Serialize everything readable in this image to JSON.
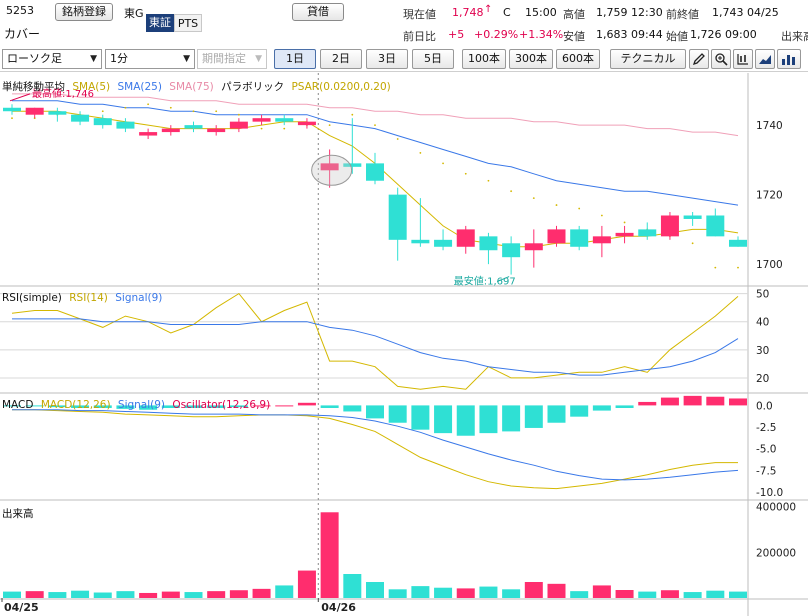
{
  "header": {
    "code": "5253",
    "company": "カバー",
    "register_button": "銘柄登録",
    "market": "東G",
    "exchange_tabs": [
      "東証",
      "PTS"
    ],
    "lend_button": "貸借",
    "current_label": "現在値",
    "current_value": "1,748",
    "current_arrow": "↑",
    "current_flag": "C",
    "current_time": "15:00",
    "high_label": "高値",
    "high_value": "1,759 12:30",
    "prev_close_label": "前終値",
    "prev_close_value": "1,743 04/25",
    "change_label": "前日比",
    "change_value": "+5",
    "change_pct": "+0.29%",
    "change_pct2": "+1.34%",
    "low_label": "安値",
    "low_value": "1,683 09:44",
    "open_label": "始値",
    "open_value": "1,726 09:00",
    "volume_label_partial": "出来高"
  },
  "toolbar": {
    "chart_type": "ローソク足",
    "interval": "1分",
    "period_placeholder": "期間指定",
    "ranges": [
      "1日",
      "2日",
      "3日",
      "5日",
      "100本",
      "300本",
      "600本"
    ],
    "active_range": "1日",
    "technical_button": "テクニカル",
    "icons": [
      "pen-icon",
      "zoom-icon",
      "compare-icon",
      "chart-style-icon",
      "bar-chart-icon"
    ]
  },
  "colors": {
    "up": "#ff2d6e",
    "down": "#2fe0d4",
    "sma5": "#d4b800",
    "sma25": "#3a78e8",
    "sma75": "#f0a0b8",
    "psar": "#d4b800",
    "rsi": "#d4b800",
    "signal": "#3a78e8",
    "macd": "#d4b800"
  },
  "main_legend": {
    "title": "単純移動平均",
    "sma5": "SMA(5)",
    "sma25": "SMA(25)",
    "sma75": "SMA(75)",
    "parabolic": "パラボリック",
    "psar": "PSAR(0.0200,0.20)"
  },
  "rsi_legend": {
    "title": "RSI(simple)",
    "rsi": "RSI(14)",
    "signal": "Signal(9)"
  },
  "macd_legend": {
    "title": "MACD",
    "macd": "MACD(12,26)",
    "signal": "Signal(9)",
    "osc": "Oscillator(12,26,9)"
  },
  "volume_legend": {
    "title": "出来高"
  },
  "chart_data": [
    {
      "type": "candlestick",
      "title": "",
      "y_ticks": [
        1700,
        1720,
        1740
      ],
      "ylim": [
        1694,
        1755
      ],
      "annotations": {
        "high": "最高値:1,746",
        "low": "最安値:1,697"
      },
      "candles": [
        {
          "o": 1745,
          "h": 1746,
          "l": 1743,
          "c": 1744
        },
        {
          "o": 1743,
          "h": 1745,
          "l": 1742,
          "c": 1745
        },
        {
          "o": 1744,
          "h": 1745,
          "l": 1741,
          "c": 1743
        },
        {
          "o": 1743,
          "h": 1744,
          "l": 1740,
          "c": 1741
        },
        {
          "o": 1742,
          "h": 1743,
          "l": 1739,
          "c": 1740
        },
        {
          "o": 1741,
          "h": 1742,
          "l": 1738,
          "c": 1739
        },
        {
          "o": 1737,
          "h": 1739,
          "l": 1736,
          "c": 1738
        },
        {
          "o": 1738,
          "h": 1740,
          "l": 1737,
          "c": 1739
        },
        {
          "o": 1740,
          "h": 1741,
          "l": 1738,
          "c": 1739
        },
        {
          "o": 1738,
          "h": 1740,
          "l": 1737,
          "c": 1739
        },
        {
          "o": 1739,
          "h": 1742,
          "l": 1738,
          "c": 1741
        },
        {
          "o": 1741,
          "h": 1743,
          "l": 1740,
          "c": 1742
        },
        {
          "o": 1742,
          "h": 1743,
          "l": 1740,
          "c": 1741
        },
        {
          "o": 1740,
          "h": 1742,
          "l": 1739,
          "c": 1741
        },
        {
          "o": 1727,
          "h": 1733,
          "l": 1722,
          "c": 1729
        },
        {
          "o": 1729,
          "h": 1742,
          "l": 1726,
          "c": 1728
        },
        {
          "o": 1729,
          "h": 1732,
          "l": 1723,
          "c": 1724
        },
        {
          "o": 1720,
          "h": 1722,
          "l": 1701,
          "c": 1707
        },
        {
          "o": 1707,
          "h": 1719,
          "l": 1705,
          "c": 1706
        },
        {
          "o": 1707,
          "h": 1710,
          "l": 1704,
          "c": 1705
        },
        {
          "o": 1705,
          "h": 1711,
          "l": 1703,
          "c": 1710
        },
        {
          "o": 1708,
          "h": 1709,
          "l": 1700,
          "c": 1704
        },
        {
          "o": 1706,
          "h": 1708,
          "l": 1697,
          "c": 1702
        },
        {
          "o": 1704,
          "h": 1710,
          "l": 1699,
          "c": 1706
        },
        {
          "o": 1706,
          "h": 1711,
          "l": 1705,
          "c": 1710
        },
        {
          "o": 1710,
          "h": 1711,
          "l": 1704,
          "c": 1705
        },
        {
          "o": 1706,
          "h": 1711,
          "l": 1702,
          "c": 1708
        },
        {
          "o": 1708,
          "h": 1711,
          "l": 1706,
          "c": 1709
        },
        {
          "o": 1710,
          "h": 1712,
          "l": 1707,
          "c": 1708
        },
        {
          "o": 1708,
          "h": 1715,
          "l": 1707,
          "c": 1714
        },
        {
          "o": 1714,
          "h": 1715,
          "l": 1711,
          "c": 1713
        },
        {
          "o": 1714,
          "h": 1716,
          "l": 1708,
          "c": 1708
        },
        {
          "o": 1707,
          "h": 1708,
          "l": 1705,
          "c": 1705
        }
      ],
      "series": [
        {
          "name": "SMA(5)",
          "values": [
            1744,
            1744,
            1744,
            1743,
            1742,
            1741,
            1740,
            1739,
            1739,
            1739,
            1739,
            1740,
            1741,
            1741,
            1737,
            1734,
            1729,
            1723,
            1717,
            1711,
            1707,
            1706,
            1705,
            1705,
            1706,
            1706,
            1707,
            1708,
            1708,
            1709,
            1710,
            1710,
            1709
          ]
        },
        {
          "name": "SMA(25)",
          "values": [
            1747,
            1747,
            1747,
            1746,
            1746,
            1745,
            1745,
            1744,
            1744,
            1743,
            1743,
            1743,
            1743,
            1743,
            1741,
            1740,
            1739,
            1737,
            1735,
            1733,
            1731,
            1729,
            1728,
            1726,
            1724,
            1723,
            1722,
            1721,
            1721,
            1720,
            1719,
            1718,
            1717
          ]
        },
        {
          "name": "SMA(75)",
          "values": [
            1749,
            1749,
            1749,
            1748,
            1748,
            1748,
            1748,
            1747,
            1747,
            1747,
            1746,
            1746,
            1746,
            1746,
            1745,
            1745,
            1744,
            1744,
            1743,
            1743,
            1742,
            1742,
            1742,
            1741,
            1741,
            1740,
            1740,
            1740,
            1739,
            1739,
            1738,
            1738,
            1737
          ]
        },
        {
          "name": "PSAR(0.0200,0.20)",
          "values": [
            1742,
            1742,
            1743,
            1743,
            1744,
            1745,
            1746,
            1745,
            1744,
            1744,
            1743,
            1739,
            1739,
            1740,
            1740,
            1743,
            1740,
            1736,
            1732,
            1729,
            1726,
            1724,
            1721,
            1719,
            1717,
            1716,
            1714,
            1712,
            1710,
            1708,
            1706,
            1699,
            1699
          ]
        }
      ]
    },
    {
      "type": "line",
      "title": "",
      "y_ticks": [
        20,
        30,
        40,
        50
      ],
      "ylim": [
        15,
        52
      ],
      "series": [
        {
          "name": "RSI(14)",
          "values": [
            43,
            44,
            44,
            41,
            38,
            42,
            40,
            36,
            39,
            45,
            50,
            40,
            44,
            47,
            26,
            26,
            24,
            17,
            16,
            17,
            16,
            24,
            20,
            20,
            21,
            22,
            22,
            24,
            22,
            30,
            36,
            42,
            49
          ]
        },
        {
          "name": "Signal(9)",
          "values": [
            41,
            41,
            41,
            41,
            40,
            40,
            40,
            39,
            39,
            39,
            39,
            40,
            40,
            40,
            38,
            37,
            35,
            32,
            29,
            27,
            26,
            24,
            23,
            22,
            22,
            21,
            21,
            22,
            23,
            24,
            26,
            29,
            34
          ]
        }
      ]
    },
    {
      "type": "bar+line",
      "title": "",
      "y_ticks": [
        0.0,
        -2.5,
        -5.0,
        -7.5,
        -10.0
      ],
      "ylim": [
        -10.8,
        1.2
      ],
      "series": [
        {
          "name": "MACD(12,26)",
          "values": [
            -0.5,
            -0.5,
            -0.6,
            -0.7,
            -0.8,
            -1.0,
            -1.1,
            -1.2,
            -1.3,
            -1.3,
            -1.2,
            -1.1,
            -1.1,
            -1.2,
            -1.5,
            -2.2,
            -3.0,
            -4.5,
            -6.0,
            -7.0,
            -8.0,
            -8.8,
            -9.3,
            -9.5,
            -9.6,
            -9.3,
            -9.0,
            -8.5,
            -8.0,
            -7.4,
            -6.9,
            -6.6,
            -6.6
          ]
        },
        {
          "name": "Signal(9)",
          "values": [
            -0.5,
            -0.5,
            -0.5,
            -0.6,
            -0.6,
            -0.7,
            -0.8,
            -0.9,
            -1.0,
            -1.0,
            -1.0,
            -1.1,
            -1.1,
            -1.1,
            -1.2,
            -1.4,
            -1.8,
            -2.4,
            -3.1,
            -4.0,
            -4.8,
            -5.6,
            -6.3,
            -6.9,
            -7.6,
            -8.1,
            -8.5,
            -8.6,
            -8.5,
            -8.3,
            -8.0,
            -7.7,
            -7.5
          ]
        },
        {
          "name": "Oscillator(12,26,9)",
          "values": [
            -0.1,
            -0.1,
            -0.2,
            -0.3,
            -0.3,
            -0.4,
            -0.5,
            -0.3,
            -0.3,
            -0.3,
            -0.2,
            0.0,
            0.0,
            0.3,
            -0.3,
            -0.7,
            -1.5,
            -2.0,
            -2.8,
            -3.2,
            -3.5,
            -3.2,
            -3.0,
            -2.6,
            -2.0,
            -1.3,
            -0.6,
            -0.3,
            0.4,
            0.9,
            1.1,
            1.0,
            0.8
          ]
        }
      ]
    },
    {
      "type": "bar",
      "title": "",
      "y_ticks": [
        200000,
        400000
      ],
      "y_tick_labels": [
        "200000",
        "400000"
      ],
      "ylim": [
        0,
        420000
      ],
      "x_labels": [
        {
          "index": 0,
          "label": "04/25"
        },
        {
          "index": 14,
          "label": "04/26"
        }
      ],
      "values": [
        28000,
        30000,
        26000,
        32000,
        24000,
        30000,
        22000,
        28000,
        26000,
        30000,
        34000,
        40000,
        55000,
        120000,
        375000,
        105000,
        70000,
        38000,
        52000,
        45000,
        42000,
        50000,
        38000,
        70000,
        62000,
        30000,
        55000,
        35000,
        28000,
        34000,
        26000,
        32000,
        28000
      ]
    }
  ]
}
